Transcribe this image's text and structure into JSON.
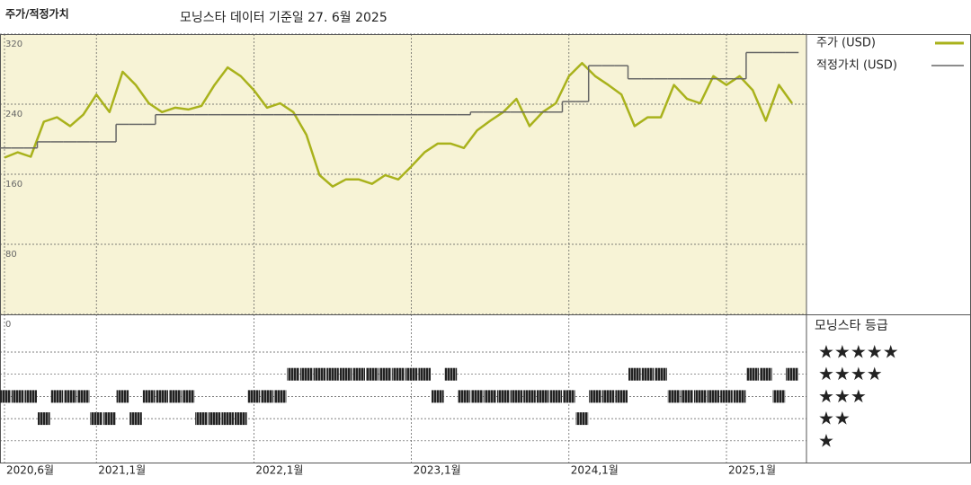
{
  "chart_data": {
    "type": "line",
    "title": "주가/적정가치",
    "subtitle": "모닝스타 데이터 기준일 27. 6월 2025",
    "x": [
      "2020-06",
      "2020-07",
      "2020-08",
      "2020-09",
      "2020-10",
      "2020-11",
      "2020-12",
      "2021-01",
      "2021-02",
      "2021-03",
      "2021-04",
      "2021-05",
      "2021-06",
      "2021-07",
      "2021-08",
      "2021-09",
      "2021-10",
      "2021-11",
      "2021-12",
      "2022-01",
      "2022-02",
      "2022-03",
      "2022-04",
      "2022-05",
      "2022-06",
      "2022-07",
      "2022-08",
      "2022-09",
      "2022-10",
      "2022-11",
      "2022-12",
      "2023-01",
      "2023-02",
      "2023-03",
      "2023-04",
      "2023-05",
      "2023-06",
      "2023-07",
      "2023-08",
      "2023-09",
      "2023-10",
      "2023-11",
      "2023-12",
      "2024-01",
      "2024-02",
      "2024-03",
      "2024-04",
      "2024-05",
      "2024-06",
      "2024-07",
      "2024-08",
      "2024-09",
      "2024-10",
      "2024-11",
      "2024-12",
      "2025-01",
      "2025-02",
      "2025-03",
      "2025-04",
      "2025-05",
      "2025-06"
    ],
    "xticks": [
      {
        "value": "2020-06",
        "label": "2020,6월"
      },
      {
        "value": "2021-01",
        "label": "2021,1월"
      },
      {
        "value": "2022-01",
        "label": "2022,1월"
      },
      {
        "value": "2023-01",
        "label": "2023,1월"
      },
      {
        "value": "2024-01",
        "label": "2024,1월"
      },
      {
        "value": "2025-01",
        "label": "2025,1월"
      }
    ],
    "ylim": [
      0,
      320
    ],
    "yticks": [
      0,
      80,
      160,
      240,
      320
    ],
    "grid": true,
    "series": [
      {
        "name": "주가 (USD)",
        "color": "#a9b21c",
        "values": [
          179,
          185,
          180,
          220,
          225,
          215,
          228,
          251,
          231,
          277,
          262,
          241,
          231,
          236,
          234,
          238,
          262,
          282,
          272,
          256,
          236,
          241,
          231,
          205,
          159,
          146,
          154,
          154,
          149,
          159,
          154,
          169,
          185,
          195,
          195,
          190,
          210,
          221,
          231,
          246,
          215,
          231,
          241,
          272,
          287,
          272,
          262,
          251,
          215,
          225,
          225,
          262,
          246,
          241,
          272,
          262,
          272,
          256,
          221,
          262,
          241
        ]
      },
      {
        "name": "적정가치 (USD)",
        "color": "#666666",
        "step": true,
        "values": [
          190,
          190,
          190,
          197,
          197,
          197,
          197,
          197,
          197,
          217,
          217,
          217,
          228,
          228,
          228,
          228,
          228,
          228,
          228,
          228,
          228,
          228,
          228,
          228,
          228,
          228,
          228,
          228,
          228,
          228,
          228,
          228,
          228,
          228,
          228,
          228,
          231,
          231,
          231,
          231,
          231,
          231,
          231,
          243,
          243,
          284,
          284,
          284,
          269,
          269,
          269,
          269,
          269,
          269,
          269,
          269,
          269,
          299,
          299,
          299,
          299
        ]
      }
    ],
    "rating": {
      "title": "모닝스타 등급",
      "levels": [
        {
          "value": 5,
          "label": "★★★★★"
        },
        {
          "value": 4,
          "label": "★★★★"
        },
        {
          "value": 3,
          "label": "★★★"
        },
        {
          "value": 2,
          "label": "★★"
        },
        {
          "value": 1,
          "label": "★"
        }
      ],
      "values": [
        3,
        3,
        3,
        2,
        3,
        3,
        3,
        2,
        2,
        3,
        2,
        3,
        3,
        3,
        3,
        2,
        2,
        2,
        2,
        3,
        3,
        3,
        4,
        4,
        4,
        4,
        4,
        4,
        4,
        4,
        4,
        4,
        4,
        3,
        4,
        3,
        3,
        3,
        3,
        3,
        3,
        3,
        3,
        3,
        2,
        3,
        3,
        3,
        4,
        4,
        4,
        3,
        3,
        3,
        3,
        3,
        3,
        4,
        4,
        3,
        4
      ]
    }
  }
}
